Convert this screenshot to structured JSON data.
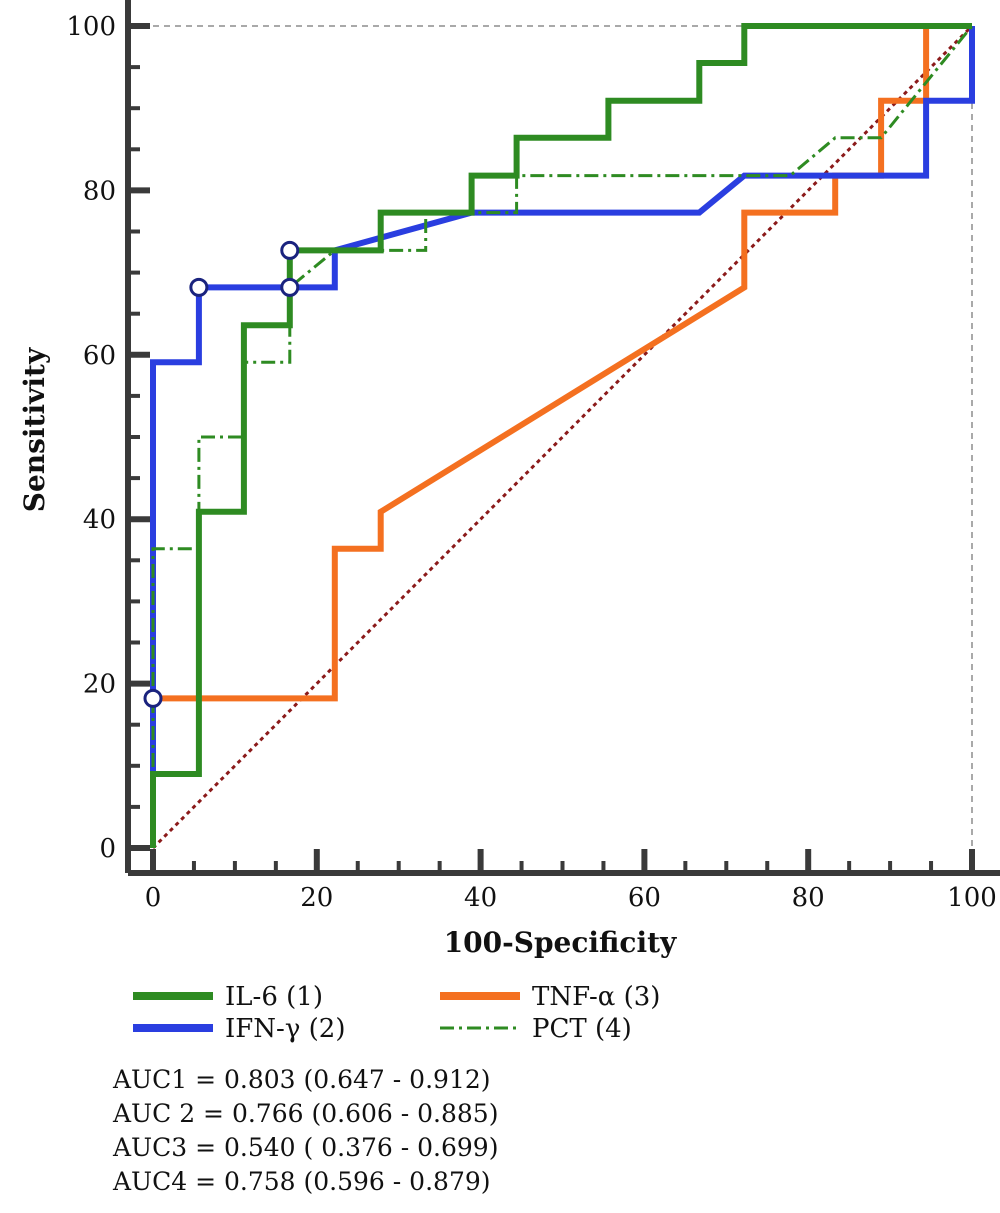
{
  "chart_data": {
    "type": "line",
    "xlabel": "100-Specificity",
    "ylabel": "Sensitivity",
    "xlim": [
      0,
      100
    ],
    "ylim": [
      0,
      100
    ],
    "x_ticks": [
      "0",
      "20",
      "40",
      "60",
      "80",
      "100"
    ],
    "y_ticks": [
      "0",
      "20",
      "40",
      "60",
      "80",
      "100"
    ],
    "grid": false,
    "reference_line": {
      "from": [
        0,
        0
      ],
      "to": [
        100,
        100
      ],
      "color": "#8b1a1a",
      "style": "dotted"
    },
    "series": [
      {
        "name": "IL-6 (1)",
        "color": "#2e8b22",
        "style": "solid",
        "points": [
          [
            0,
            0
          ],
          [
            0,
            9
          ],
          [
            5.6,
            9
          ],
          [
            5.6,
            40.9
          ],
          [
            11.1,
            40.9
          ],
          [
            11.1,
            63.6
          ],
          [
            16.7,
            63.6
          ],
          [
            16.7,
            72.7
          ],
          [
            27.8,
            72.7
          ],
          [
            27.8,
            77.3
          ],
          [
            38.9,
            77.3
          ],
          [
            38.9,
            81.8
          ],
          [
            44.4,
            81.8
          ],
          [
            44.4,
            86.4
          ],
          [
            55.6,
            86.4
          ],
          [
            55.6,
            90.9
          ],
          [
            66.7,
            90.9
          ],
          [
            66.7,
            95.5
          ],
          [
            72.2,
            95.5
          ],
          [
            72.2,
            100
          ],
          [
            100,
            100
          ]
        ]
      },
      {
        "name": "IFN-γ (2)",
        "color": "#2a3ee0",
        "style": "solid",
        "points": [
          [
            0,
            0
          ],
          [
            0,
            59.1
          ],
          [
            5.6,
            59.1
          ],
          [
            5.6,
            68.2
          ],
          [
            22.2,
            68.2
          ],
          [
            22.2,
            72.7
          ],
          [
            38.9,
            77.3
          ],
          [
            66.7,
            77.3
          ],
          [
            72.2,
            81.8
          ],
          [
            83.3,
            81.8
          ],
          [
            94.4,
            81.8
          ],
          [
            94.4,
            86.4
          ],
          [
            94.4,
            90.9
          ],
          [
            100,
            90.9
          ],
          [
            100,
            100
          ]
        ],
        "markers": [
          [
            0,
            18.2
          ],
          [
            5.6,
            68.2
          ],
          [
            16.7,
            68.2
          ],
          [
            16.7,
            72.7
          ]
        ]
      },
      {
        "name": "TNF-α (3)",
        "color": "#f47020",
        "style": "solid",
        "points": [
          [
            0,
            0
          ],
          [
            0,
            18.2
          ],
          [
            22.2,
            18.2
          ],
          [
            22.2,
            36.4
          ],
          [
            27.8,
            36.4
          ],
          [
            27.8,
            40.9
          ],
          [
            72.2,
            68.2
          ],
          [
            72.2,
            77.3
          ],
          [
            83.3,
            77.3
          ],
          [
            83.3,
            81.8
          ],
          [
            88.9,
            81.8
          ],
          [
            88.9,
            90.9
          ],
          [
            94.4,
            90.9
          ],
          [
            94.4,
            100
          ],
          [
            100,
            100
          ]
        ]
      },
      {
        "name": "PCT (4)",
        "color": "#2e8b22",
        "style": "dashdot",
        "points": [
          [
            0,
            0
          ],
          [
            0,
            36.4
          ],
          [
            5.6,
            36.4
          ],
          [
            5.6,
            50
          ],
          [
            11.1,
            50
          ],
          [
            11.1,
            59.1
          ],
          [
            16.7,
            59.1
          ],
          [
            16.7,
            68.2
          ],
          [
            22.2,
            72.7
          ],
          [
            27.8,
            72.7
          ],
          [
            33.3,
            72.7
          ],
          [
            33.3,
            77.3
          ],
          [
            44.4,
            77.3
          ],
          [
            44.4,
            81.8
          ],
          [
            77.8,
            81.8
          ],
          [
            83.3,
            86.4
          ],
          [
            88.9,
            86.4
          ],
          [
            100,
            100
          ]
        ]
      }
    ],
    "legend": [
      {
        "label": "IL-6 (1)",
        "series": 0
      },
      {
        "label": "TNF-α (3)",
        "series": 2
      },
      {
        "label": "IFN-γ (2)",
        "series": 1
      },
      {
        "label": "PCT (4)",
        "series": 3
      }
    ],
    "auc": [
      "AUC1 = 0.803 (0.647 - 0.912)",
      "AUC 2 = 0.766 (0.606 - 0.885)",
      "AUC3 = 0.540 ( 0.376 - 0.699)",
      "AUC4 = 0.758 (0.596 - 0.879)"
    ]
  }
}
